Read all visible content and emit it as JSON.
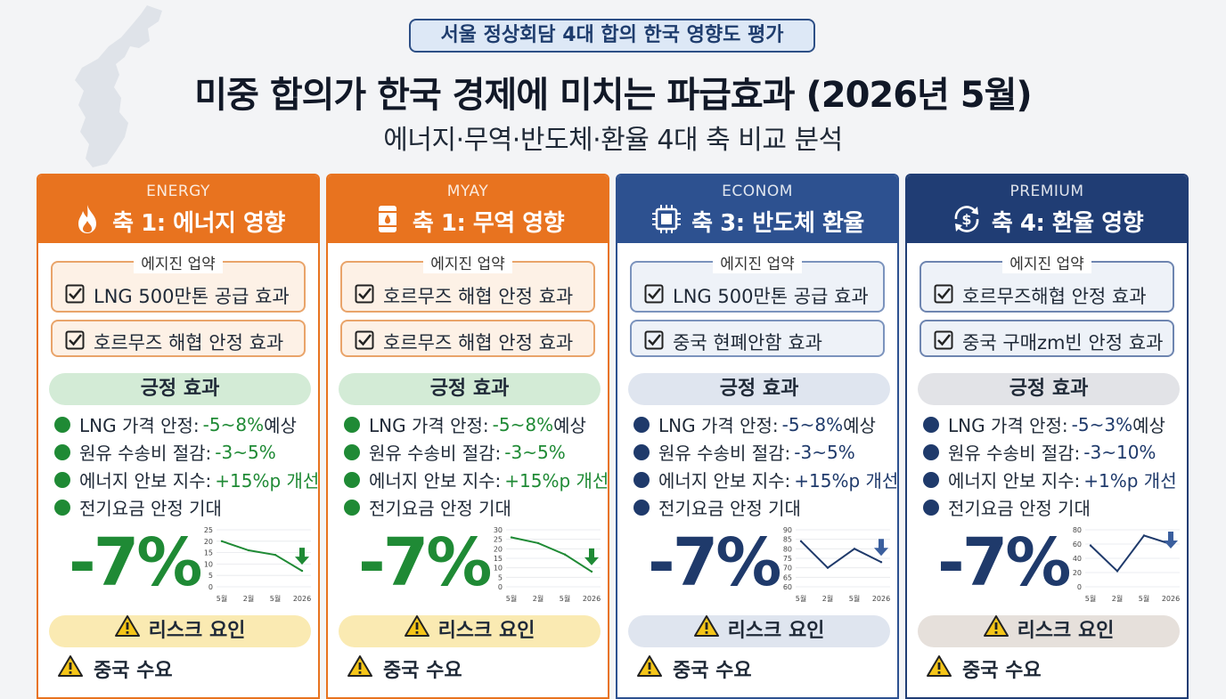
{
  "header": {
    "badge": "서울 정상회담 4대 합의 한국 영향도 평가",
    "title": "미중 합의가 한국 경제에 미치는 파급효과 (2026년 5월)",
    "subtitle": "에너지·무역·반도체·환율 4대 축 비교 분석"
  },
  "colors": {
    "orange": "#e8731f",
    "navy_light": "#2d5190",
    "navy_dark": "#203d74",
    "green": "#1f8a35",
    "navy_text": "#1f3a6b"
  },
  "columns": [
    {
      "tag": "ENERGY",
      "title": "축 1: 에너지 영향",
      "icon": "flame-icon",
      "box_label": "에지진 업약",
      "item1": "LNG 500만톤 공급 효과",
      "item2": "호르무즈 해협 안정 효과",
      "positive_label": "긍정 효과",
      "bullets": [
        {
          "text": "LNG 가격 안정:",
          "value": "-5~8%",
          "suffix": " 예상"
        },
        {
          "text": "원유 수송비 절감:",
          "value": "-3~5%",
          "suffix": ""
        },
        {
          "text": "에너지 안보 지수:",
          "value": "+15%p 개선",
          "suffix": ""
        },
        {
          "text": "전기요금 안정 기대",
          "value": "",
          "suffix": ""
        }
      ],
      "big_value": "-7%",
      "chart_data": {
        "type": "line",
        "x": [
          "5월",
          "2월",
          "5월",
          "2026"
        ],
        "values": [
          20,
          16,
          14,
          7
        ],
        "yticks": [
          "25",
          "20",
          "15",
          "10",
          "5",
          "0"
        ],
        "ylim": [
          0,
          25
        ]
      },
      "risk_label": "리스크 요인",
      "risk_item": "중국 수요"
    },
    {
      "tag": "MYAY",
      "title": "축 1: 무역 영향",
      "icon": "oil-barrel-icon",
      "box_label": "에지진 업약",
      "item1": "호르무즈 해협 안정 효과",
      "item2": "호르무즈 해협 안정 효과",
      "positive_label": "긍정 효과",
      "bullets": [
        {
          "text": "LNG 가격 안정:",
          "value": "-5~8%",
          "suffix": " 예상"
        },
        {
          "text": "원유 수송비 절감:",
          "value": "-3~5%",
          "suffix": ""
        },
        {
          "text": "에너지 안보 지수:",
          "value": "+15%p 개선",
          "suffix": ""
        },
        {
          "text": "전기요금 안정 기대",
          "value": "",
          "suffix": ""
        }
      ],
      "big_value": "-7%",
      "chart_data": {
        "type": "line",
        "x": [
          "5월",
          "2월",
          "5월",
          "2026"
        ],
        "values": [
          26,
          23,
          17,
          8
        ],
        "yticks": [
          "30",
          "25",
          "20",
          "15",
          "10",
          "5",
          "0"
        ],
        "ylim": [
          0,
          30
        ]
      },
      "risk_label": "리스크 요인",
      "risk_item": "중국 수요"
    },
    {
      "tag": "ECONOM",
      "title": "축 3: 반도체 환율",
      "icon": "chip-icon",
      "box_label": "에지진 업약",
      "item1": "LNG 500만톤 공급 효과",
      "item2": "중국 현폐안함 효과",
      "positive_label": "긍정 효과",
      "bullets": [
        {
          "text": "LNG 가격 안정:",
          "value": "-5~8%",
          "suffix": " 예상"
        },
        {
          "text": "원유 수송비 절감:",
          "value": "-3~5%",
          "suffix": ""
        },
        {
          "text": "에너지 안보 지수:",
          "value": "+15%p 개선",
          "suffix": ""
        },
        {
          "text": "전기요금 안정 기대",
          "value": "",
          "suffix": ""
        }
      ],
      "big_value": "-7%",
      "chart_data": {
        "type": "line",
        "x": [
          "5월",
          "2월",
          "5월",
          "2026"
        ],
        "values": [
          84,
          70,
          80,
          73
        ],
        "yticks": [
          "90",
          "85",
          "80",
          "75",
          "70",
          "65",
          "60"
        ],
        "ylim": [
          60,
          90
        ]
      },
      "risk_label": "리스크 요인",
      "risk_item": "중국 수요"
    },
    {
      "tag": "PREMIUM",
      "title": "축 4: 환율 영향",
      "icon": "currency-exchange-icon",
      "box_label": "에지진 업약",
      "item1": "호르무즈해협 안정 효과",
      "item2": "중국 구매zm빈 안정 효과",
      "positive_label": "긍정 효과",
      "bullets": [
        {
          "text": "LNG 가격 안정:",
          "value": "-5~3%",
          "suffix": " 예상"
        },
        {
          "text": "원유 수송비 절감:",
          "value": "-3~10%",
          "suffix": ""
        },
        {
          "text": "에너지 안보 지수:",
          "value": "+1%p 개선",
          "suffix": ""
        },
        {
          "text": "전기요금 안정 기대",
          "value": "",
          "suffix": ""
        }
      ],
      "big_value": "-7%",
      "chart_data": {
        "type": "line",
        "x": [
          "5월",
          "2월",
          "5월",
          "2026"
        ],
        "values": [
          58,
          22,
          72,
          60
        ],
        "yticks": [
          "80",
          "60",
          "40",
          "20",
          "0"
        ],
        "ylim": [
          0,
          80
        ]
      },
      "risk_label": "리스크 요인",
      "risk_item": "중국 수요"
    }
  ]
}
